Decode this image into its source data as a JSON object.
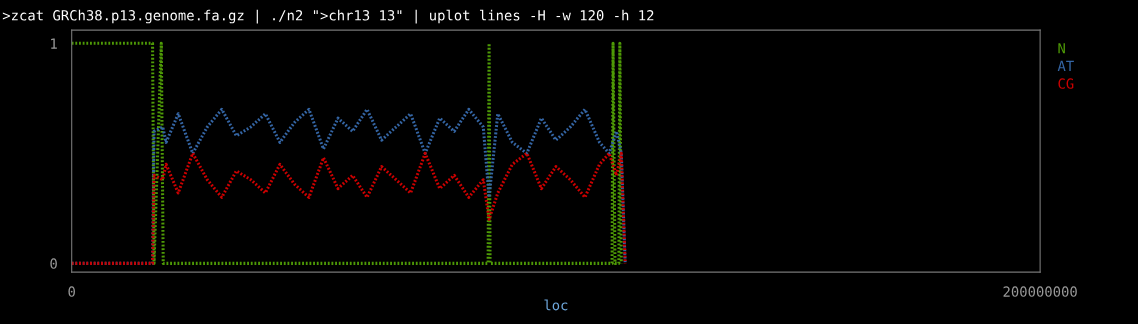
{
  "chart_data": {
    "type": "line",
    "title": ">zcat GRCh38.p13.genome.fa.gz | ./n2 \">chr13 13\" | uplot lines -H -w 120 -h 12",
    "xlabel": "loc",
    "xlim": [
      0,
      200000000
    ],
    "xticks": [
      0,
      200000000
    ],
    "ylim": [
      -0.04,
      1.06
    ],
    "yticks": [
      0,
      1
    ],
    "grid": false,
    "legend": "right",
    "line_style": "dotted",
    "series": [
      {
        "name": "N",
        "color": "#4e9a06",
        "x": [
          0,
          16700000,
          17000000,
          18500000,
          18900000,
          86000000,
          86200000,
          86400000,
          111600000,
          111800000,
          112200000,
          113000000,
          113200000,
          113500000
        ],
        "values": [
          1,
          1,
          0,
          1,
          0,
          0,
          1,
          0,
          0,
          1,
          0,
          0,
          1,
          0
        ]
      },
      {
        "name": "AT",
        "color": "#3465a4",
        "x": [
          0,
          16700000,
          17000000,
          18800000,
          19500000,
          22000000,
          25000000,
          28000000,
          31000000,
          34000000,
          37000000,
          40000000,
          43000000,
          46000000,
          49000000,
          52000000,
          55000000,
          58000000,
          61000000,
          64000000,
          67000000,
          70000000,
          73000000,
          76000000,
          79000000,
          82000000,
          85000000,
          86200000,
          88000000,
          91000000,
          94000000,
          97000000,
          100000000,
          103000000,
          106000000,
          109000000,
          111000000,
          112500000,
          113500000,
          114300000
        ],
        "values": [
          0,
          0,
          0.6,
          0.62,
          0.55,
          0.68,
          0.5,
          0.62,
          0.7,
          0.58,
          0.62,
          0.68,
          0.55,
          0.64,
          0.7,
          0.52,
          0.66,
          0.6,
          0.7,
          0.56,
          0.62,
          0.68,
          0.5,
          0.66,
          0.6,
          0.7,
          0.62,
          0.3,
          0.68,
          0.55,
          0.5,
          0.66,
          0.56,
          0.62,
          0.7,
          0.55,
          0.5,
          0.6,
          0.5,
          0
        ]
      },
      {
        "name": "CG",
        "color": "#cc0000",
        "x": [
          0,
          16700000,
          17000000,
          18800000,
          19500000,
          22000000,
          25000000,
          28000000,
          31000000,
          34000000,
          37000000,
          40000000,
          43000000,
          46000000,
          49000000,
          52000000,
          55000000,
          58000000,
          61000000,
          64000000,
          67000000,
          70000000,
          73000000,
          76000000,
          79000000,
          82000000,
          85000000,
          86200000,
          88000000,
          91000000,
          94000000,
          97000000,
          100000000,
          103000000,
          106000000,
          109000000,
          111000000,
          112500000,
          113500000,
          114300000
        ],
        "values": [
          0,
          0,
          0.4,
          0.38,
          0.45,
          0.32,
          0.5,
          0.38,
          0.3,
          0.42,
          0.38,
          0.32,
          0.45,
          0.36,
          0.3,
          0.48,
          0.34,
          0.4,
          0.3,
          0.44,
          0.38,
          0.32,
          0.5,
          0.34,
          0.4,
          0.3,
          0.38,
          0.2,
          0.32,
          0.45,
          0.5,
          0.34,
          0.44,
          0.38,
          0.3,
          0.45,
          0.5,
          0.4,
          0.5,
          0
        ]
      }
    ]
  }
}
